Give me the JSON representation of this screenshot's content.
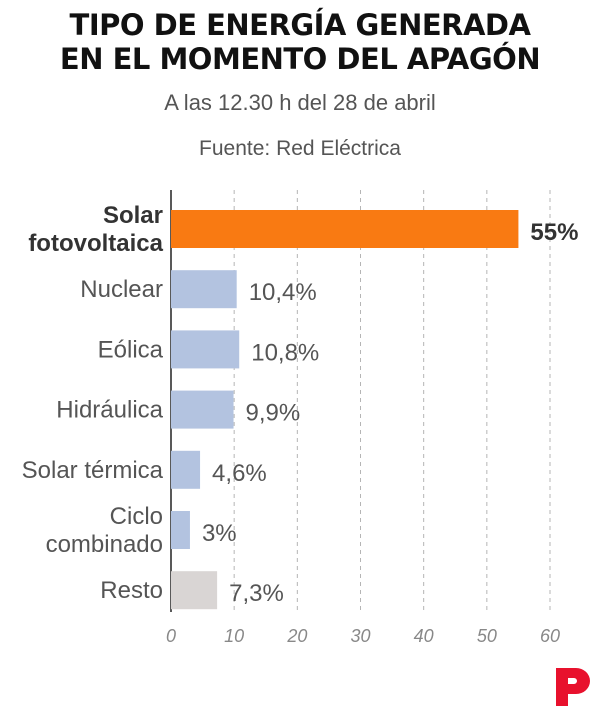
{
  "title_lines": [
    "TIPO DE ENERGÍA GENERADA",
    "EN EL MOMENTO DEL APAGÓN"
  ],
  "subtitle": "A las 12.30 h del 28 de abril",
  "source": "Fuente: Red Eléctrica",
  "colors": {
    "highlight": "#f97a12",
    "default": "#b3c3e0",
    "other": "#d9d5d4",
    "label": "#555555",
    "label_bold": "#333333",
    "grid": "#b5b5b5",
    "axis": "#222222",
    "logo": "#e8112d"
  },
  "logo_icon": "publico-logo-icon",
  "chart_data": {
    "type": "bar",
    "orientation": "horizontal",
    "categories": [
      [
        "Solar",
        "fotovoltaica"
      ],
      [
        "Nuclear"
      ],
      [
        "Eólica"
      ],
      [
        "Hidráulica"
      ],
      [
        "Solar térmica"
      ],
      [
        "Ciclo",
        "combinado"
      ],
      [
        "Resto"
      ]
    ],
    "values": [
      55,
      10.4,
      10.8,
      9.9,
      4.6,
      3,
      7.3
    ],
    "value_labels": [
      "55%",
      "10,4%",
      "10,8%",
      "9,9%",
      "4,6%",
      "3%",
      "7,3%"
    ],
    "bar_styles": [
      "highlight",
      "default",
      "default",
      "default",
      "default",
      "default",
      "other"
    ],
    "xlim": [
      0,
      60
    ],
    "xticks": [
      0,
      10,
      20,
      30,
      40,
      50,
      60
    ],
    "grid": "vertical dashed"
  }
}
